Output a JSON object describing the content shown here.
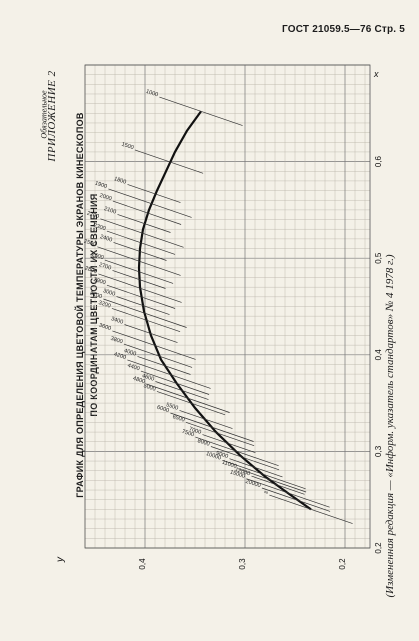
{
  "header": "ГОСТ 21059.5—76 Стр. 5",
  "appendix_title": "ПРИЛОЖЕНИЕ 2",
  "appendix_status": "Обязательное",
  "chart_title_line1": "ГРАФИК ДЛЯ ОПРЕДЕЛЕНИЯ ЦВЕТОВОЙ ТЕМПЕРАТУРЫ ЭКРАНОВ КИНЕСКОПОВ",
  "chart_title_line2": "ПО КООРДИНАТАМ ЦВЕТНОСТИ ИХ СВЕЧЕНИЯ",
  "footnote": "(Измененная редакция — «Информ. указатель стандартов» № 4 1978 г.)",
  "chart_data": {
    "type": "line",
    "x_axis": {
      "label": "x",
      "ticks": [
        "0,2",
        "0,3",
        "0,4",
        "0,5",
        "0,6"
      ],
      "range": [
        0.2,
        0.7
      ]
    },
    "y_axis": {
      "label": "y",
      "ticks": [
        "0,2",
        "0,3",
        "0,4"
      ],
      "range": [
        0.175,
        0.46
      ]
    },
    "grid": true,
    "locus": [
      {
        "x": 0.24,
        "y": 0.234
      },
      {
        "x": 0.256,
        "y": 0.256
      },
      {
        "x": 0.274,
        "y": 0.28
      },
      {
        "x": 0.296,
        "y": 0.305
      },
      {
        "x": 0.32,
        "y": 0.329
      },
      {
        "x": 0.345,
        "y": 0.35
      },
      {
        "x": 0.37,
        "y": 0.368
      },
      {
        "x": 0.395,
        "y": 0.384
      },
      {
        "x": 0.42,
        "y": 0.394
      },
      {
        "x": 0.445,
        "y": 0.401
      },
      {
        "x": 0.47,
        "y": 0.405
      },
      {
        "x": 0.49,
        "y": 0.406
      },
      {
        "x": 0.51,
        "y": 0.405
      },
      {
        "x": 0.53,
        "y": 0.402
      },
      {
        "x": 0.55,
        "y": 0.396
      },
      {
        "x": 0.57,
        "y": 0.388
      },
      {
        "x": 0.59,
        "y": 0.379
      },
      {
        "x": 0.61,
        "y": 0.37
      },
      {
        "x": 0.632,
        "y": 0.358
      },
      {
        "x": 0.652,
        "y": 0.344
      }
    ],
    "isotherms": [
      {
        "label": "∞",
        "x": 0.24,
        "y": 0.234
      },
      {
        "label": "20000",
        "x": 0.25,
        "y": 0.249
      },
      {
        "label": "15000",
        "x": 0.257,
        "y": 0.257
      },
      {
        "label": "12000",
        "x": 0.265,
        "y": 0.267
      },
      {
        "label": "11000",
        "x": 0.27,
        "y": 0.273
      },
      {
        "label": "10000",
        "x": 0.276,
        "y": 0.281
      },
      {
        "label": "9000",
        "x": 0.283,
        "y": 0.289
      },
      {
        "label": "8000",
        "x": 0.293,
        "y": 0.3
      },
      {
        "label": "7500",
        "x": 0.3,
        "y": 0.308
      },
      {
        "label": "7000",
        "x": 0.308,
        "y": 0.316
      },
      {
        "label": "6500",
        "x": 0.318,
        "y": 0.325
      },
      {
        "label": "6000",
        "x": 0.325,
        "y": 0.333
      },
      {
        "label": "5500",
        "x": 0.333,
        "y": 0.339
      },
      {
        "label": "5000",
        "x": 0.35,
        "y": 0.354
      },
      {
        "label": "4800",
        "x": 0.355,
        "y": 0.357
      },
      {
        "label": "4600",
        "x": 0.363,
        "y": 0.363
      },
      {
        "label": "4400",
        "x": 0.371,
        "y": 0.37
      },
      {
        "label": "4200",
        "x": 0.38,
        "y": 0.376
      },
      {
        "label": "4000",
        "x": 0.389,
        "y": 0.381
      },
      {
        "label": "3800",
        "x": 0.399,
        "y": 0.387
      },
      {
        "label": "3600",
        "x": 0.41,
        "y": 0.391
      },
      {
        "label": "3400",
        "x": 0.422,
        "y": 0.394
      },
      {
        "label": "3200",
        "x": 0.436,
        "y": 0.399
      },
      {
        "label": "3100",
        "x": 0.443,
        "y": 0.4
      },
      {
        "label": "3000",
        "x": 0.451,
        "y": 0.402
      },
      {
        "label": "2900",
        "x": 0.46,
        "y": 0.404
      },
      {
        "label": "2800",
        "x": 0.469,
        "y": 0.405
      },
      {
        "label": "2700",
        "x": 0.478,
        "y": 0.406
      },
      {
        "label": "2600",
        "x": 0.486,
        "y": 0.406
      },
      {
        "label": "2500",
        "x": 0.497,
        "y": 0.406
      },
      {
        "label": "2400",
        "x": 0.507,
        "y": 0.405
      },
      {
        "label": "2300",
        "x": 0.516,
        "y": 0.404
      },
      {
        "label": "2200",
        "x": 0.526,
        "y": 0.403
      },
      {
        "label": "2100",
        "x": 0.536,
        "y": 0.401
      },
      {
        "label": "2000",
        "x": 0.547,
        "y": 0.398
      },
      {
        "label": "1900",
        "x": 0.557,
        "y": 0.395
      },
      {
        "label": "1800",
        "x": 0.567,
        "y": 0.391
      },
      {
        "label": "1500",
        "x": 0.6,
        "y": 0.376
      },
      {
        "label": "1000",
        "x": 0.652,
        "y": 0.344
      }
    ]
  }
}
